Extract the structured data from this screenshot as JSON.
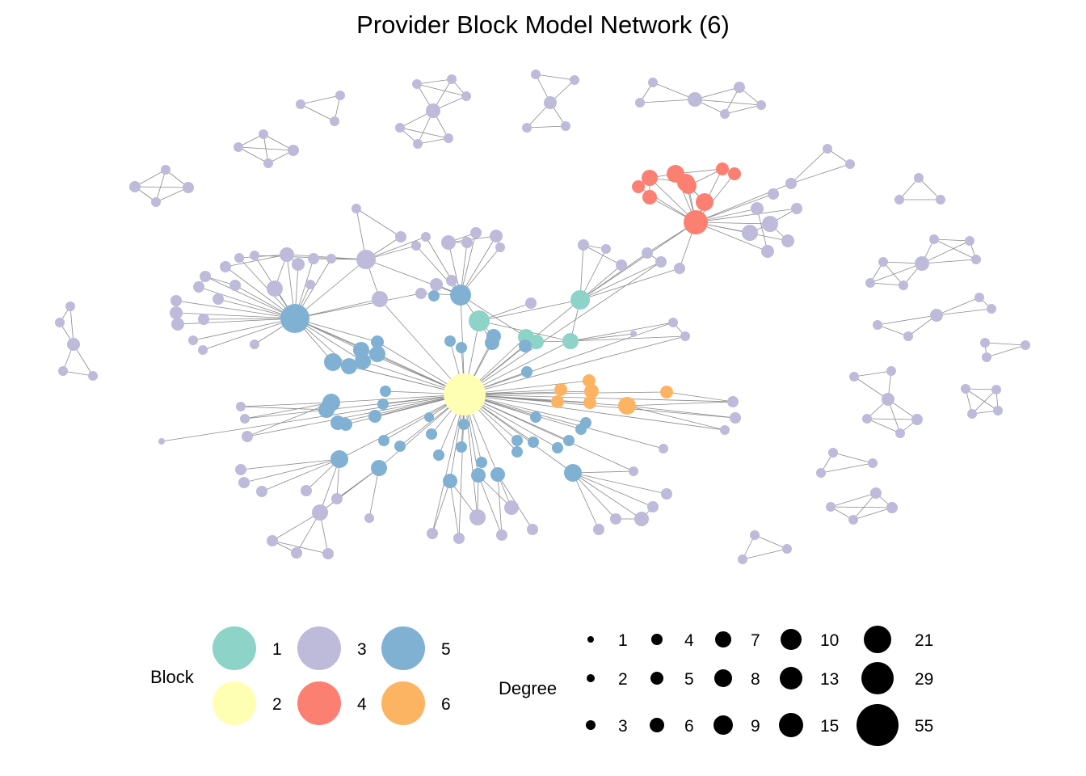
{
  "title": "Provider Block Model Network (6)",
  "block_legend": {
    "title": "Block",
    "items": [
      {
        "label": "1",
        "color": "#8DD3C7"
      },
      {
        "label": "3",
        "color": "#BEBADA"
      },
      {
        "label": "5",
        "color": "#80B1D3"
      },
      {
        "label": "2",
        "color": "#FFFFB3"
      },
      {
        "label": "4",
        "color": "#FB8072"
      },
      {
        "label": "6",
        "color": "#FDB462"
      }
    ]
  },
  "degree_legend": {
    "title": "Degree",
    "items": [
      {
        "label": "1",
        "value": 1
      },
      {
        "label": "2",
        "value": 2
      },
      {
        "label": "3",
        "value": 3
      },
      {
        "label": "4",
        "value": 4
      },
      {
        "label": "5",
        "value": 5
      },
      {
        "label": "6",
        "value": 6
      },
      {
        "label": "7",
        "value": 7
      },
      {
        "label": "8",
        "value": 8
      },
      {
        "label": "9",
        "value": 9
      },
      {
        "label": "10",
        "value": 10
      },
      {
        "label": "13",
        "value": 13
      },
      {
        "label": "15",
        "value": 15
      },
      {
        "label": "21",
        "value": 21
      },
      {
        "label": "29",
        "value": 29
      },
      {
        "label": "55",
        "value": 55
      }
    ]
  },
  "edge_color": "#8a8a8a"
}
